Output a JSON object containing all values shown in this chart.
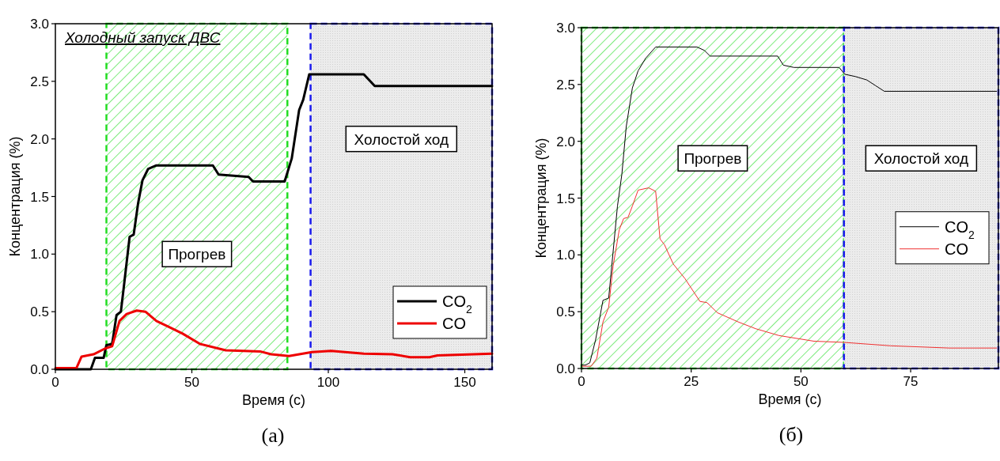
{
  "chart_data": [
    {
      "type": "line",
      "title": "Холодный запуск ДВС",
      "xlabel": "Время (с)",
      "ylabel": "Концентрация (%)",
      "xlim": [
        0,
        160
      ],
      "xticks": [
        0,
        50,
        100,
        150
      ],
      "ylim": [
        0,
        3
      ],
      "yticks": [
        {
          "value": 0,
          "label": "0.0"
        },
        0.5,
        {
          "value": 1,
          "label": "1.0"
        },
        1.5,
        {
          "value": 2,
          "label": "2.0"
        },
        2.5,
        {
          "value": 3,
          "label": "3.0"
        }
      ],
      "legend": "bottom right",
      "annotations": [
        "(а)"
      ],
      "bands": [
        {
          "axis": "x",
          "from": 18.7,
          "to": 85,
          "label": "Прогрев",
          "color": "#22dd22"
        },
        {
          "axis": "x",
          "from": 93.5,
          "to": 160,
          "label": "Холостой ход",
          "color": "#1a1aee"
        }
      ],
      "series": [
        {
          "name": "CO$_{2}$",
          "color": "#000000",
          "x": [
            0,
            13,
            14.5,
            17.7,
            18.7,
            20.8,
            22.4,
            24,
            25,
            27.2,
            28.7,
            30.3,
            31.9,
            34,
            37,
            57.7,
            59.8,
            70.8,
            72.4,
            84,
            86.6,
            89.3,
            90.8,
            93,
            113,
            117,
            160
          ],
          "values": [
            0,
            0,
            0.1,
            0.1,
            0.21,
            0.22,
            0.47,
            0.5,
            0.7,
            1.15,
            1.17,
            1.44,
            1.64,
            1.74,
            1.77,
            1.77,
            1.69,
            1.67,
            1.63,
            1.63,
            1.83,
            2.25,
            2.34,
            2.56,
            2.56,
            2.46,
            2.46
          ]
        },
        {
          "name": "CO",
          "color": "#ee0000",
          "x": [
            0,
            7.7,
            9.6,
            14,
            18.2,
            20.8,
            23.5,
            26.1,
            29.8,
            33,
            37,
            41.4,
            46.6,
            53,
            62.4,
            75,
            79,
            85.6,
            94,
            101,
            113,
            123.5,
            130,
            137,
            140,
            160
          ],
          "values": [
            0.01,
            0.01,
            0.11,
            0.13,
            0.18,
            0.2,
            0.42,
            0.48,
            0.51,
            0.5,
            0.42,
            0.37,
            0.31,
            0.22,
            0.165,
            0.155,
            0.13,
            0.115,
            0.15,
            0.16,
            0.135,
            0.13,
            0.105,
            0.105,
            0.12,
            0.135
          ]
        }
      ]
    },
    {
      "type": "line",
      "xlabel": "Время (с)",
      "ylabel": "Концентрация (%)",
      "xlim": [
        0,
        95
      ],
      "xticks": [
        0,
        25,
        50,
        75
      ],
      "ylim": [
        0,
        3
      ],
      "yticks": [
        {
          "value": 0,
          "label": "0.0"
        },
        0.5,
        {
          "value": 1,
          "label": "1.0"
        },
        1.5,
        {
          "value": 2,
          "label": "2.0"
        },
        2.5,
        {
          "value": 3,
          "label": "3.0"
        }
      ],
      "legend": "right",
      "annotations": [
        "(б)"
      ],
      "bands": [
        {
          "axis": "x",
          "from": 0,
          "to": 59.8,
          "label": "Прогрев",
          "color": "#22dd22"
        },
        {
          "axis": "x",
          "from": 59.8,
          "to": 95,
          "label": "Холостой ход",
          "color": "#1a1aee"
        }
      ],
      "series": [
        {
          "name": "CO$_{2}$",
          "color": "#000000",
          "x": [
            0,
            0.9,
            1.9,
            3.2,
            4.9,
            6.2,
            8.2,
            9.2,
            10.2,
            11.6,
            12.9,
            14.6,
            16.9,
            26.3,
            28,
            29.3,
            44.7,
            46,
            48.4,
            58.7,
            60,
            62.4,
            65,
            67,
            69,
            94.6
          ],
          "values": [
            0.03,
            0.03,
            0.05,
            0.25,
            0.6,
            0.62,
            1.43,
            1.71,
            2.13,
            2.47,
            2.62,
            2.73,
            2.83,
            2.83,
            2.8,
            2.75,
            2.75,
            2.67,
            2.65,
            2.65,
            2.59,
            2.57,
            2.54,
            2.49,
            2.44,
            2.44
          ]
        },
        {
          "name": "CO",
          "color": "#f03030",
          "x": [
            0,
            2.2,
            3.5,
            4.9,
            6.2,
            7.2,
            8.6,
            9.6,
            10.6,
            11.6,
            12.9,
            15.3,
            16.9,
            17.9,
            18.9,
            20.9,
            23.6,
            27,
            28.6,
            31,
            35.7,
            39.7,
            45,
            53,
            59.7,
            70.4,
            83.8,
            94.6
          ],
          "values": [
            0.02,
            0.02,
            0.09,
            0.41,
            0.54,
            0.9,
            1.22,
            1.32,
            1.33,
            1.43,
            1.57,
            1.59,
            1.56,
            1.14,
            1.09,
            0.92,
            0.79,
            0.59,
            0.58,
            0.49,
            0.41,
            0.35,
            0.29,
            0.24,
            0.23,
            0.2,
            0.18,
            0.18
          ]
        }
      ]
    }
  ]
}
